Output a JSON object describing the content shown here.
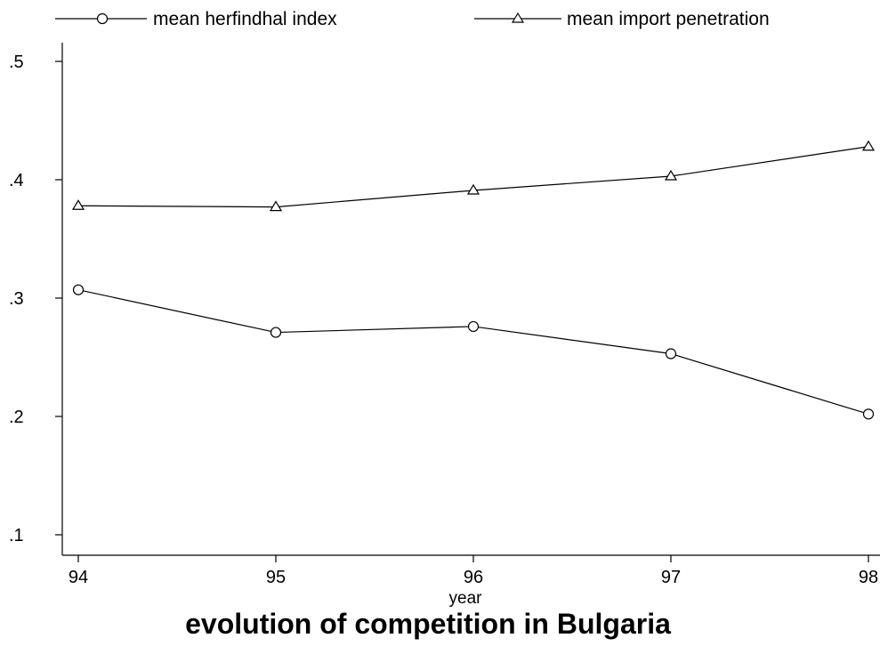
{
  "chart_data": {
    "type": "line",
    "title": "evolution of competition in Bulgaria",
    "xlabel": "year",
    "ylabel": "",
    "x": [
      94,
      95,
      96,
      97,
      98
    ],
    "x_ticks": [
      "94",
      "95",
      "96",
      "97",
      "98"
    ],
    "y_ticks": [
      ".1",
      ".2",
      ".3",
      ".4",
      ".5"
    ],
    "y_tick_values": [
      0.1,
      0.2,
      0.3,
      0.4,
      0.5
    ],
    "xlim": [
      94,
      98
    ],
    "ylim": [
      0.1,
      0.5
    ],
    "grid": false,
    "legend_position": "top",
    "series": [
      {
        "name": "mean herfindhal index",
        "marker": "circle",
        "values": [
          0.307,
          0.271,
          0.276,
          0.253,
          0.202
        ]
      },
      {
        "name": "mean import penetration",
        "marker": "triangle",
        "values": [
          0.378,
          0.377,
          0.391,
          0.403,
          0.428
        ]
      }
    ]
  }
}
